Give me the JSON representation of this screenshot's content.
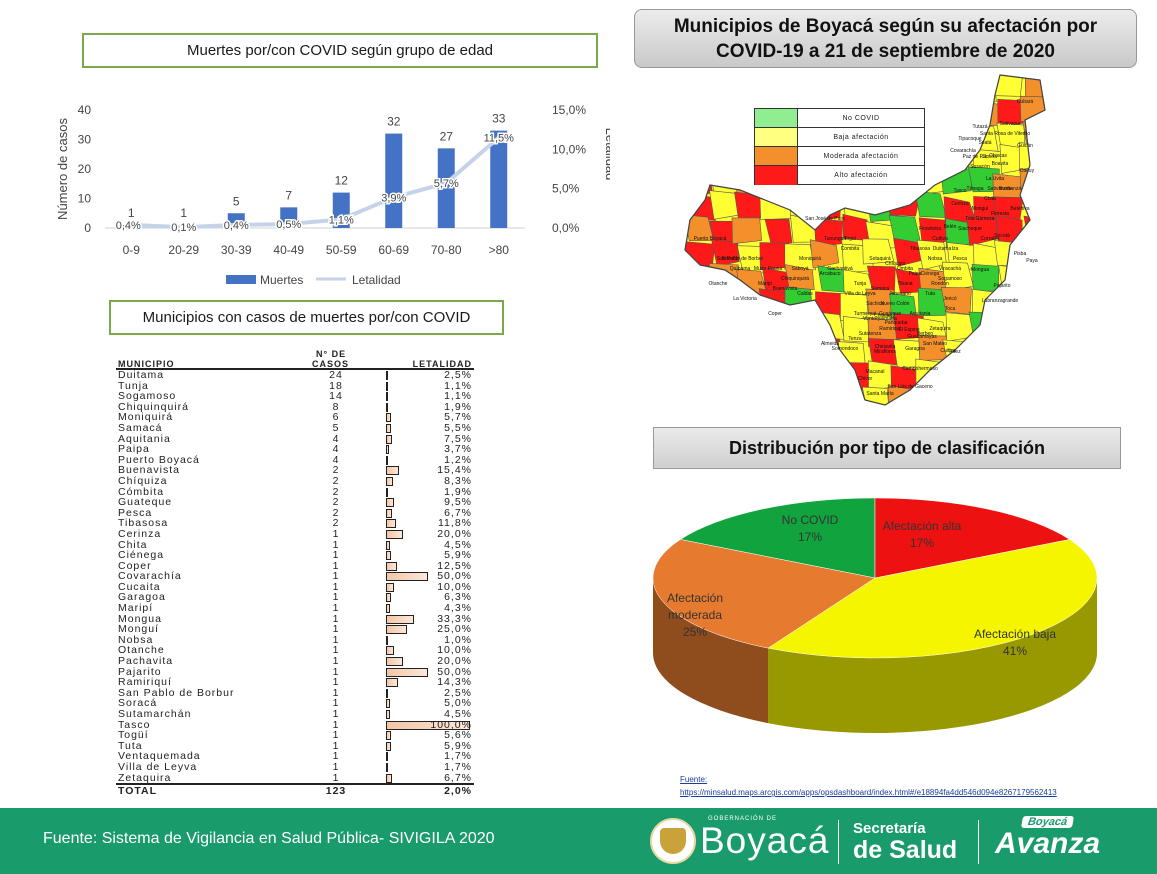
{
  "header": {
    "bar_title": "Muertes por/con COVID según grupo de edad",
    "map_title_line1": "Municipios de Boyacá según su afectación por",
    "map_title_line2": "COVID-19 a 21 de septiembre de 2020",
    "table_title": "Municipios con casos de muertes por/con COVID",
    "pie_title": "Distribución por tipo de clasificación"
  },
  "map_legend": [
    {
      "label": "No COVID",
      "color": "#90ee90"
    },
    {
      "label": "Baja afectación",
      "color": "#ffff80"
    },
    {
      "label": "Moderada afectación",
      "color": "#f4902c"
    },
    {
      "label": "Alto afectación",
      "color": "#ff1a1a"
    }
  ],
  "map_labels": [
    "Cubará",
    "Chiscas",
    "Güicán",
    "Cocuy",
    "Puerto Boyacá",
    "Otanche",
    "Tunja",
    "Paya",
    "Pisba",
    "Mongua",
    "Socotá",
    "Pajarito",
    "Páez",
    "Miraflores",
    "Macanal",
    "Santa María",
    "Chivor",
    "Covarachía",
    "Susacón",
    "Belén",
    "Sotaquirá",
    "Moniquirá",
    "Arcabuco",
    "Combita",
    "Tuta",
    "Toca",
    "Paipa",
    "Labranzagrande",
    "Aquitania",
    "Ramiriquí",
    "Garagoa",
    "Campohermoso",
    "Chinavita",
    "San Pablo de Borbur",
    "Maripí",
    "Pauna",
    "Saboyá",
    "Coper",
    "La Victoria",
    "San José de Pare",
    "Zetaquira",
    "Berbeo",
    "Tasco",
    "Soatá",
    "Boavita",
    "Tipacoque",
    "La Uvita",
    "Duitama",
    "Sogamoso",
    "Nobsa",
    "Tibasosa",
    "Cerinza",
    "Chita",
    "San Luis de Gaceno",
    "Guateque",
    "Sutatenza",
    "Tenza",
    "Somondoco",
    "Almeida",
    "Chiquinquirá",
    "Caldas",
    "Buenavista",
    "Muzo",
    "Quípama",
    "Briceño",
    "Tununguá",
    "Togüí",
    "Gachantivá",
    "Villa de Leyva",
    "Sáchica",
    "Samacá",
    "Ventaquemada",
    "Turmequé",
    "Nuevo Colón",
    "Jenesano",
    "Tibaná",
    "Úmbita",
    "Chíquiza",
    "Siachoque",
    "Viracachá",
    "Ciénega",
    "Rondón",
    "Pesca",
    "Iza",
    "Cuítiva",
    "Firavitoba",
    "Tota",
    "Mongui",
    "Tópaga",
    "Gámeza",
    "Corrales",
    "Floresta",
    "Busbanzá",
    "Betéitiva",
    "Santa Rosa de Viterbo",
    "Tutazá",
    "Paz de Río",
    "Socha",
    "Sativanorte",
    "Sativasur",
    "Jericó",
    "Chiscas",
    "Panqueba",
    "El Espino",
    "Guacamayas",
    "San Mateo",
    "Cuitiva"
  ],
  "source": {
    "label": "Fuente:",
    "url": "https://minsalud.maps.arcgis.com/apps/opsdashboard/index.html#/e18894fa4dd546d094e8267179562413"
  },
  "footer": {
    "text": "Fuente: Sistema de Vigilancia en Salud Pública- SIVIGILA 2020",
    "gobernacion": "GOBERNACIÓN DE",
    "boyaca": "Boyacá",
    "secretaria": "Secretaría",
    "de_salud": "de Salud",
    "badge": "Boyacá",
    "avanza": "Avanza"
  },
  "table": {
    "headers": {
      "municipio": "MUNICIPIO",
      "casos_1": "N° DE",
      "casos_2": "CASOS",
      "letalidad": "LETALIDAD"
    },
    "rows": [
      {
        "municipio": "Duitama",
        "casos": "24",
        "letalidad": "2,5%",
        "v": 2.5
      },
      {
        "municipio": "Tunja",
        "casos": "18",
        "letalidad": "1,1%",
        "v": 1.1
      },
      {
        "municipio": "Sogamoso",
        "casos": "14",
        "letalidad": "1,1%",
        "v": 1.1
      },
      {
        "municipio": "Chiquinquirá",
        "casos": "8",
        "letalidad": "1,9%",
        "v": 1.9
      },
      {
        "municipio": "Moniquirá",
        "casos": "6",
        "letalidad": "5,7%",
        "v": 5.7
      },
      {
        "municipio": "Samacá",
        "casos": "5",
        "letalidad": "5,5%",
        "v": 5.5
      },
      {
        "municipio": "Aquitania",
        "casos": "4",
        "letalidad": "7,5%",
        "v": 7.5
      },
      {
        "municipio": "Paipa",
        "casos": "4",
        "letalidad": "3,7%",
        "v": 3.7
      },
      {
        "municipio": "Puerto Boyacá",
        "casos": "4",
        "letalidad": "1,2%",
        "v": 1.2
      },
      {
        "municipio": "Buenavista",
        "casos": "2",
        "letalidad": "15,4%",
        "v": 15.4
      },
      {
        "municipio": "Chíquiza",
        "casos": "2",
        "letalidad": "8,3%",
        "v": 8.3
      },
      {
        "municipio": "Cómbita",
        "casos": "2",
        "letalidad": "1,9%",
        "v": 1.9
      },
      {
        "municipio": "Guateque",
        "casos": "2",
        "letalidad": "9,5%",
        "v": 9.5
      },
      {
        "municipio": "Pesca",
        "casos": "2",
        "letalidad": "6,7%",
        "v": 6.7
      },
      {
        "municipio": "Tibasosa",
        "casos": "2",
        "letalidad": "11,8%",
        "v": 11.8
      },
      {
        "municipio": "Cerinza",
        "casos": "1",
        "letalidad": "20,0%",
        "v": 20.0
      },
      {
        "municipio": "Chita",
        "casos": "1",
        "letalidad": "4,5%",
        "v": 4.5
      },
      {
        "municipio": "Ciénega",
        "casos": "1",
        "letalidad": "5,9%",
        "v": 5.9
      },
      {
        "municipio": "Coper",
        "casos": "1",
        "letalidad": "12,5%",
        "v": 12.5
      },
      {
        "municipio": "Covarachía",
        "casos": "1",
        "letalidad": "50,0%",
        "v": 50.0
      },
      {
        "municipio": "Cucaita",
        "casos": "1",
        "letalidad": "10,0%",
        "v": 10.0
      },
      {
        "municipio": "Garagoa",
        "casos": "1",
        "letalidad": "6,3%",
        "v": 6.3
      },
      {
        "municipio": "Maripí",
        "casos": "1",
        "letalidad": "4,3%",
        "v": 4.3
      },
      {
        "municipio": "Mongua",
        "casos": "1",
        "letalidad": "33,3%",
        "v": 33.3
      },
      {
        "municipio": "Monguí",
        "casos": "1",
        "letalidad": "25,0%",
        "v": 25.0
      },
      {
        "municipio": "Nobsa",
        "casos": "1",
        "letalidad": "1,0%",
        "v": 1.0
      },
      {
        "municipio": "Otanche",
        "casos": "1",
        "letalidad": "10,0%",
        "v": 10.0
      },
      {
        "municipio": "Pachavita",
        "casos": "1",
        "letalidad": "20,0%",
        "v": 20.0
      },
      {
        "municipio": "Pajarito",
        "casos": "1",
        "letalidad": "50,0%",
        "v": 50.0
      },
      {
        "municipio": "Ramiriquí",
        "casos": "1",
        "letalidad": "14,3%",
        "v": 14.3
      },
      {
        "municipio": "San Pablo de Borbur",
        "casos": "1",
        "letalidad": "2,5%",
        "v": 2.5
      },
      {
        "municipio": "Soracá",
        "casos": "1",
        "letalidad": "5,0%",
        "v": 5.0
      },
      {
        "municipio": "Sutamarchán",
        "casos": "1",
        "letalidad": "4,5%",
        "v": 4.5
      },
      {
        "municipio": "Tasco",
        "casos": "1",
        "letalidad": "100,0%",
        "v": 100.0
      },
      {
        "municipio": "Togüí",
        "casos": "1",
        "letalidad": "5,6%",
        "v": 5.6
      },
      {
        "municipio": "Tuta",
        "casos": "1",
        "letalidad": "5,9%",
        "v": 5.9
      },
      {
        "municipio": "Ventaquemada",
        "casos": "1",
        "letalidad": "1,7%",
        "v": 1.7
      },
      {
        "municipio": "Villa de Leyva",
        "casos": "1",
        "letalidad": "1,7%",
        "v": 1.7
      },
      {
        "municipio": "Zetaquira",
        "casos": "1",
        "letalidad": "6,7%",
        "v": 6.7
      }
    ],
    "total": {
      "label": "TOTAL",
      "casos": "123",
      "letalidad": "2,0%"
    }
  },
  "chart_data": [
    {
      "type": "bar",
      "title": "Muertes por/con COVID según grupo de edad",
      "categories": [
        "0-9",
        "20-29",
        "30-39",
        "40-49",
        "50-59",
        "60-69",
        "70-80",
        ">80"
      ],
      "series": [
        {
          "name": "Muertes",
          "type": "bar",
          "values": [
            1,
            1,
            5,
            7,
            12,
            32,
            27,
            33
          ],
          "color": "#4472c4"
        },
        {
          "name": "Letalidad",
          "type": "line",
          "axis": "right",
          "values": [
            0.4,
            0.1,
            0.4,
            0.5,
            1.1,
            3.9,
            5.7,
            11.5
          ],
          "labels": [
            "0,4%",
            "0,1%",
            "0,4%",
            "0,5%",
            "1,1%",
            "3,9%",
            "5,7%",
            "11,5%"
          ],
          "color": "#c5d3ea"
        }
      ],
      "ylabel": "Número de casos",
      "y2label": "Letalidad",
      "ylim": [
        0,
        40
      ],
      "yticks": [
        "0",
        "10",
        "20",
        "30",
        "40"
      ],
      "y2lim": [
        0,
        15
      ],
      "y2ticks": [
        "0,0%",
        "5,0%",
        "10,0%",
        "15,0%"
      ],
      "legend": "bottom",
      "grid": false
    },
    {
      "type": "pie",
      "title": "Distribución por tipo de clasificación",
      "slices": [
        {
          "label": "No COVID",
          "value": 17,
          "text": "17%",
          "color": "#11a33e"
        },
        {
          "label": "Afectación alta",
          "value": 17,
          "text": "17%",
          "color": "#ee1111"
        },
        {
          "label": "Afectación baja",
          "value": 41,
          "text": "41%",
          "color": "#f5f500"
        },
        {
          "label": "Afectación moderada",
          "value": 25,
          "text": "25%",
          "color": "#e67a2e"
        }
      ],
      "style": "3d"
    }
  ]
}
